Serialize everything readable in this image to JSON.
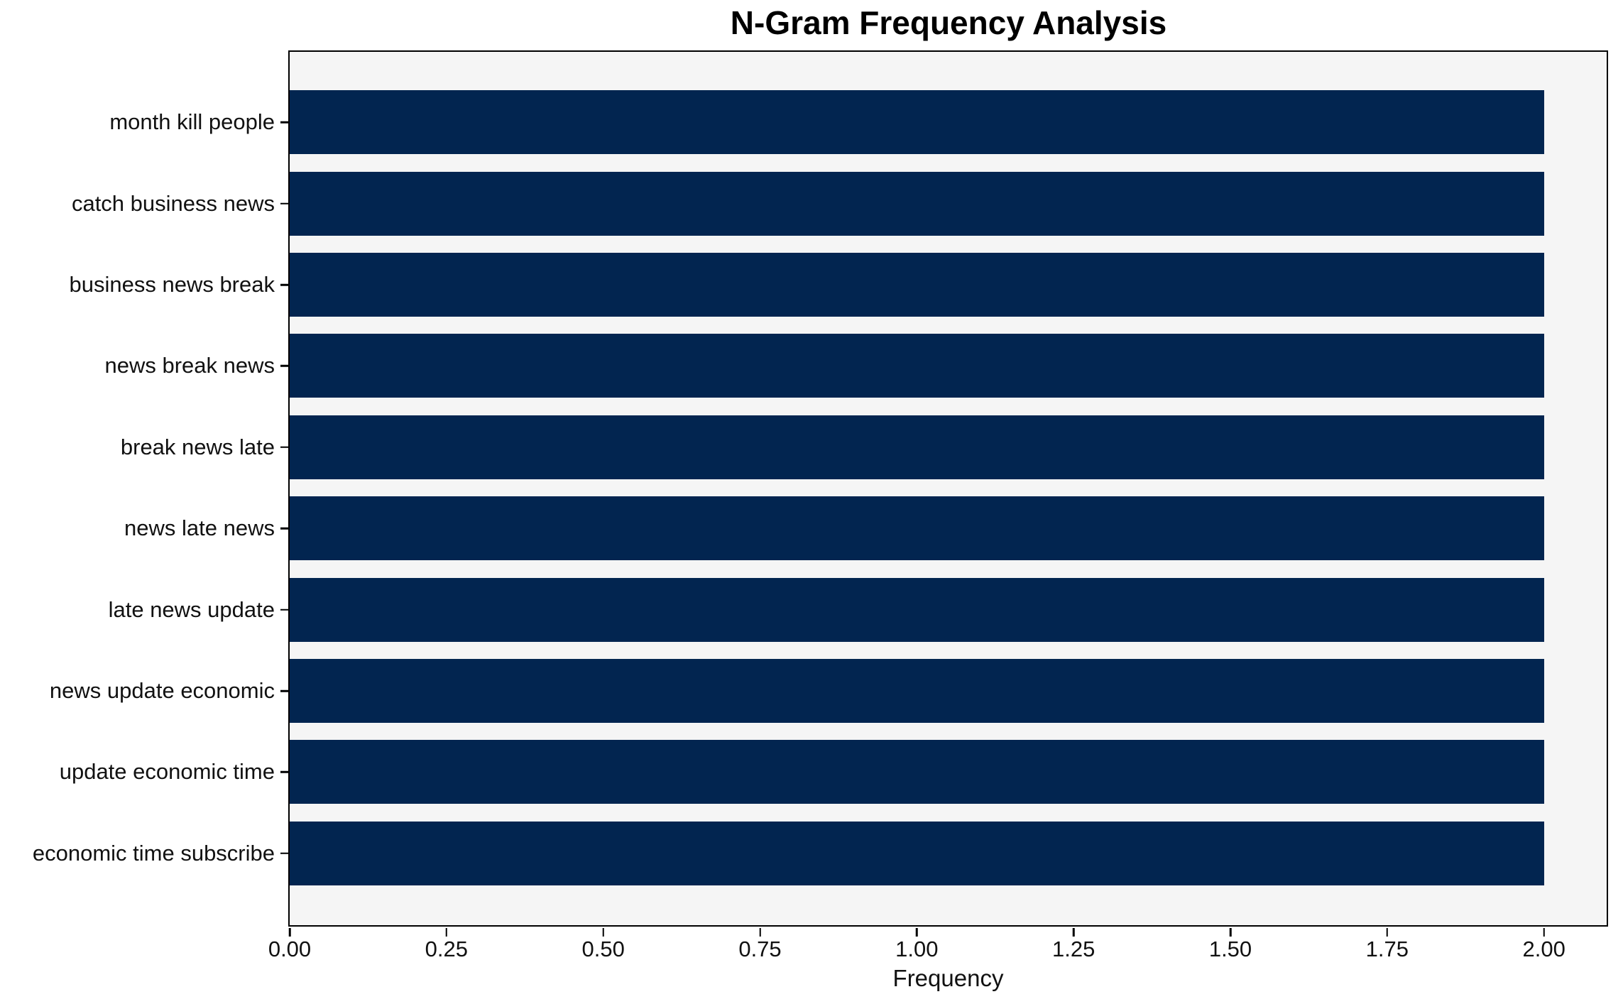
{
  "chart_data": {
    "type": "bar",
    "orientation": "horizontal",
    "title": "N-Gram Frequency Analysis",
    "xlabel": "Frequency",
    "ylabel": "",
    "categories": [
      "month kill people",
      "catch business news",
      "business news break",
      "news break news",
      "break news late",
      "news late news",
      "late news update",
      "news update economic",
      "update economic time",
      "economic time subscribe"
    ],
    "values": [
      2,
      2,
      2,
      2,
      2,
      2,
      2,
      2,
      2,
      2
    ],
    "xlim": [
      0,
      2.1
    ],
    "xtick_labels": [
      "0.00",
      "0.25",
      "0.50",
      "0.75",
      "1.00",
      "1.25",
      "1.50",
      "1.75",
      "2.00"
    ],
    "xtick_values": [
      0,
      0.25,
      0.5,
      0.75,
      1.0,
      1.25,
      1.5,
      1.75,
      2.0
    ],
    "bar_color": "#022550",
    "plot_bg": "#f5f5f5",
    "spine_color": "#000000",
    "grid": false,
    "legend": false
  }
}
